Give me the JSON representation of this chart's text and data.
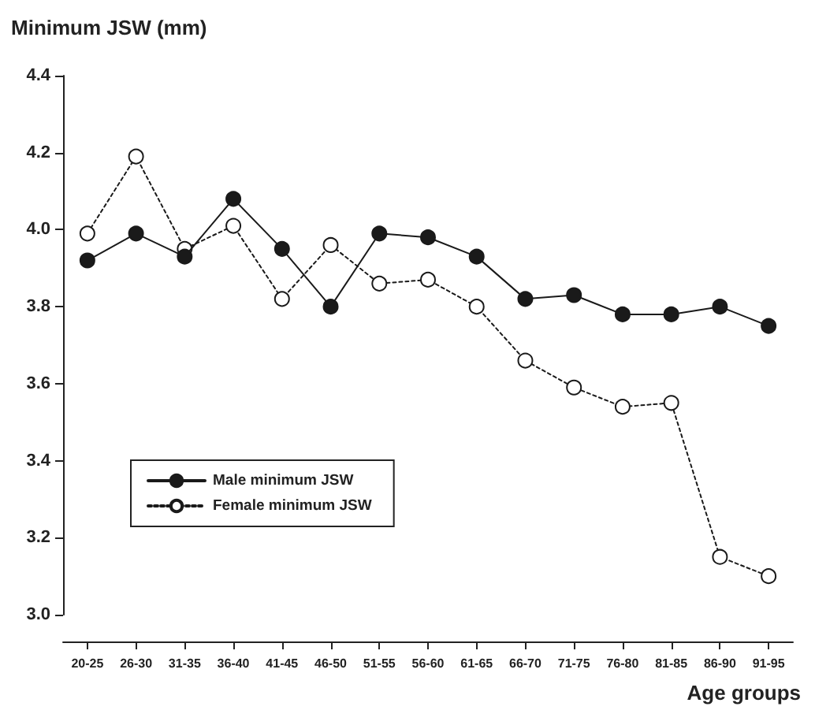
{
  "chart_data": {
    "type": "line",
    "ylabel": "Minimum JSW (mm)",
    "xlabel": "Age groups",
    "categories": [
      "20-25",
      "26-30",
      "31-35",
      "36-40",
      "41-45",
      "46-50",
      "51-55",
      "56-60",
      "61-65",
      "66-70",
      "71-75",
      "76-80",
      "81-85",
      "86-90",
      "91-95"
    ],
    "series": [
      {
        "name": "Male minimum JSW",
        "color": "#1a1a1a",
        "marker": "circle",
        "line_style": "solid",
        "values": [
          3.92,
          3.99,
          3.93,
          4.08,
          3.95,
          3.8,
          3.99,
          3.98,
          3.93,
          3.82,
          3.83,
          3.78,
          3.78,
          3.8,
          3.75
        ]
      },
      {
        "name": "Female minimum JSW",
        "color": "#1a1a1a",
        "marker": "circle",
        "line_style": "dotted",
        "values": [
          3.99,
          4.19,
          3.95,
          4.01,
          3.82,
          3.96,
          3.86,
          3.87,
          3.8,
          3.66,
          3.59,
          3.54,
          3.55,
          3.15,
          3.1
        ]
      }
    ],
    "ylim": [
      3.0,
      4.4
    ],
    "yticks": [
      {
        "value": 3.0,
        "label": "3.0"
      },
      {
        "value": 3.2,
        "label": "3.2"
      },
      {
        "value": 3.4,
        "label": "3.4"
      },
      {
        "value": 3.6,
        "label": "3.6"
      },
      {
        "value": 3.8,
        "label": "3.8"
      },
      {
        "value": 4.0,
        "label": "4.0"
      },
      {
        "value": 4.2,
        "label": "4.2"
      },
      {
        "value": 4.4,
        "label": "4.4"
      }
    ],
    "grid": false,
    "legend": "bottom left"
  }
}
